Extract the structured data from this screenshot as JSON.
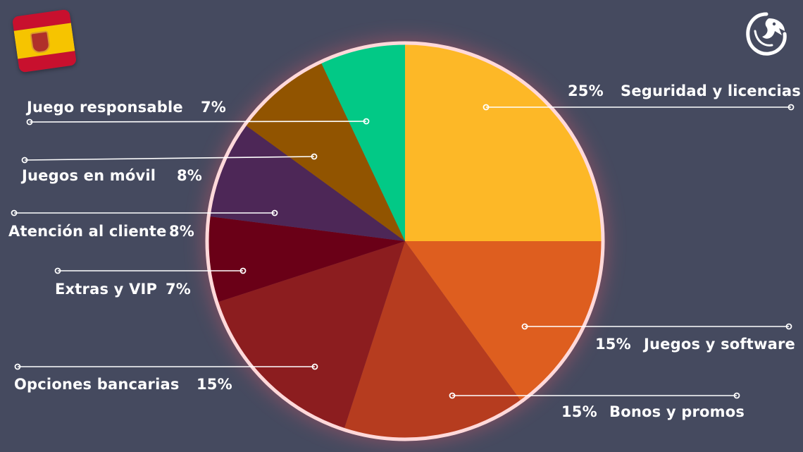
{
  "chart_data": {
    "type": "pie",
    "title": "",
    "slices": [
      {
        "label": "Seguridad y licencias",
        "value": 25,
        "value_label": "25%",
        "color": "#fdb827"
      },
      {
        "label": "Juegos y software",
        "value": 15,
        "value_label": "15%",
        "color": "#de5e1f"
      },
      {
        "label": "Bonos y promos",
        "value": 15,
        "value_label": "15%",
        "color": "#b63c1f"
      },
      {
        "label": "Opciones bancarias",
        "value": 15,
        "value_label": "15%",
        "color": "#8c1d1f"
      },
      {
        "label": "Extras y VIP",
        "value": 7,
        "value_label": "7%",
        "color": "#6a0017"
      },
      {
        "label": "Atención al cliente",
        "value": 8,
        "value_label": "8%",
        "color": "#4d2757"
      },
      {
        "label": "Juegos en móvil",
        "value": 8,
        "value_label": "8%",
        "color": "#915400"
      },
      {
        "label": "Juego responsable",
        "value": 7,
        "value_label": "7%",
        "color": "#02c986"
      }
    ],
    "start_angle": "12 o'clock",
    "direction": "clockwise",
    "legend": "none (leader-line labels)"
  },
  "colors": {
    "background": "#454a5f",
    "pie_border": "#ffd9da",
    "label_text": "#ffffff"
  },
  "icons": {
    "flag": "spain-flag-icon",
    "logo": "dragon-logo-icon"
  }
}
